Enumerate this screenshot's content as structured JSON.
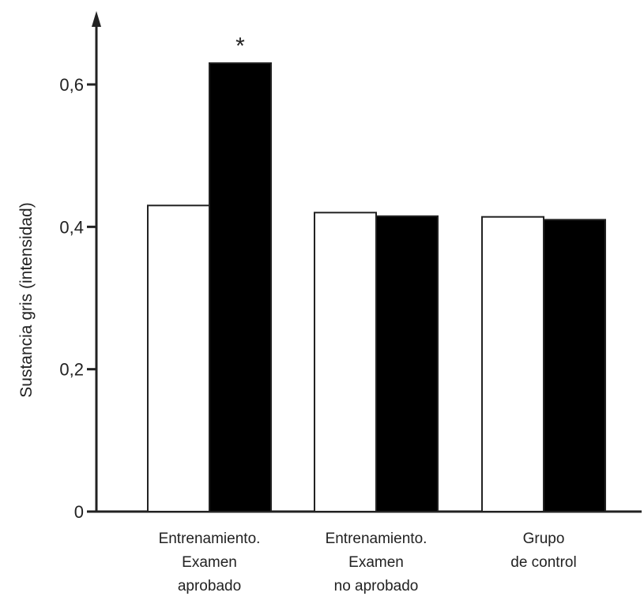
{
  "chart_data": {
    "type": "bar",
    "categories": [
      [
        "Entrenamiento.",
        "Examen",
        "aprobado"
      ],
      [
        "Entrenamiento.",
        "Examen",
        "no aprobado"
      ],
      [
        "Grupo",
        "de control"
      ]
    ],
    "series": [
      {
        "values": [
          0.43,
          0.42,
          0.414
        ],
        "color": "#ffffff"
      },
      {
        "values": [
          0.63,
          0.415,
          0.41
        ],
        "color": "#000000"
      }
    ],
    "ylabel": "Sustancia gris (intensidad)",
    "xlabel": "",
    "ylim": [
      0,
      0.7
    ],
    "yticks": [
      {
        "value": 0,
        "label": "0"
      },
      {
        "value": 0.2,
        "label": "0,2"
      },
      {
        "value": 0.4,
        "label": "0,4"
      },
      {
        "value": 0.6,
        "label": "0,6"
      }
    ],
    "annotations": [
      {
        "text": "*",
        "category_index": 0,
        "series_index": 1
      }
    ],
    "grid": false,
    "legend": "none"
  }
}
